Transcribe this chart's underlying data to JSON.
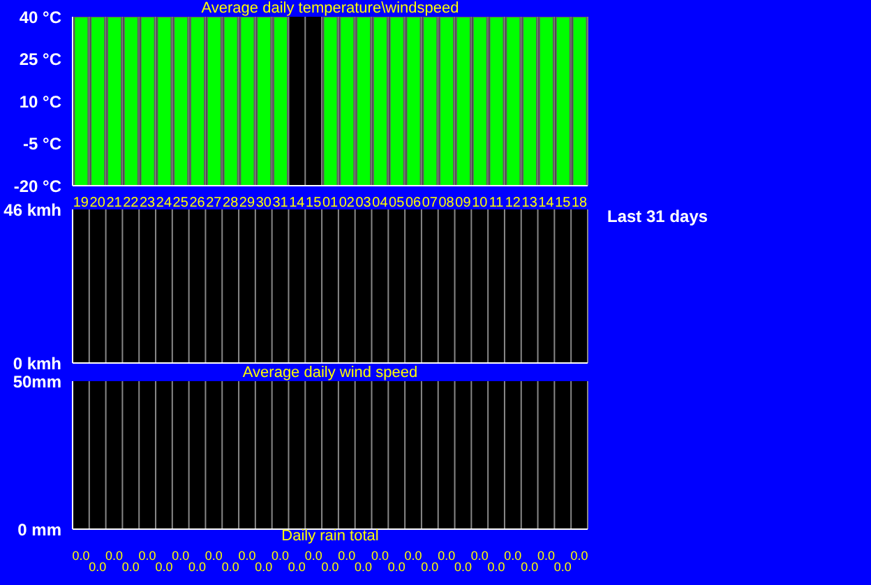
{
  "chart_data": [
    {
      "type": "bar",
      "title": "Average daily temperature\\windspeed",
      "categories": [
        "19",
        "20",
        "21",
        "22",
        "23",
        "24",
        "25",
        "26",
        "27",
        "28",
        "29",
        "30",
        "31",
        "14",
        "15",
        "01",
        "02",
        "03",
        "04",
        "05",
        "06",
        "07",
        "08",
        "09",
        "10",
        "11",
        "12",
        "13",
        "14",
        "15",
        "18"
      ],
      "values": [
        60,
        60,
        60,
        60,
        60,
        60,
        60,
        60,
        60,
        60,
        60,
        60,
        60,
        null,
        null,
        60,
        60,
        60,
        60,
        60,
        60,
        60,
        60,
        60,
        60,
        60,
        60,
        60,
        60,
        60,
        60
      ],
      "color": "#00ff00",
      "base": [
        -20,
        -20,
        -20,
        -20,
        -20,
        -20,
        -20,
        -20,
        -20,
        -20,
        -20,
        -20,
        -20,
        null,
        null,
        -20,
        -20,
        -20,
        -20,
        -20,
        -20,
        -20,
        -20,
        -20,
        -20,
        -20,
        -20,
        -20,
        -20,
        -20,
        -20
      ],
      "ylim": [
        -20,
        40
      ],
      "yticks": [
        {
          "value": -20,
          "label": "-20 °C"
        },
        {
          "value": -5,
          "label": "-5 °C"
        },
        {
          "value": 10,
          "label": "10 °C"
        },
        {
          "value": 25,
          "label": "25 °C"
        },
        {
          "value": 40,
          "label": "40 °C"
        }
      ]
    },
    {
      "type": "bar",
      "xlabel": "Average daily wind speed",
      "annotations": [
        "Last 31 days"
      ],
      "tick_labels": "y",
      "categories": [
        "19",
        "20",
        "21",
        "22",
        "23",
        "24",
        "25",
        "26",
        "27",
        "28",
        "29",
        "30",
        "31",
        "14",
        "15",
        "01",
        "02",
        "03",
        "04",
        "05",
        "06",
        "07",
        "08",
        "09",
        "10",
        "11",
        "12",
        "13",
        "14",
        "15",
        "18"
      ],
      "values": [
        0,
        0,
        0,
        0,
        0,
        0,
        0,
        0,
        0,
        0,
        0,
        0,
        0,
        0,
        0,
        0,
        0,
        0,
        0,
        0,
        0,
        0,
        0,
        0,
        0,
        0,
        0,
        0,
        0,
        0,
        0
      ],
      "color": "#00ff00",
      "ylim": [
        0,
        46
      ],
      "yticks": [
        {
          "value": 0,
          "label": "0 kmh"
        },
        {
          "value": 46,
          "label": "46 kmh"
        }
      ]
    },
    {
      "type": "bar",
      "xlabel": "Daily rain total",
      "tick_labels": "y",
      "data_labels": true,
      "categories": [
        "19",
        "20",
        "21",
        "22",
        "23",
        "24",
        "25",
        "26",
        "27",
        "28",
        "29",
        "30",
        "31",
        "14",
        "15",
        "01",
        "02",
        "03",
        "04",
        "05",
        "06",
        "07",
        "08",
        "09",
        "10",
        "11",
        "12",
        "13",
        "14",
        "15",
        "18"
      ],
      "values": [
        0,
        0,
        0,
        0,
        0,
        0,
        0,
        0,
        0,
        0,
        0,
        0,
        0,
        0,
        0,
        0,
        0,
        0,
        0,
        0,
        0,
        0,
        0,
        0,
        0,
        0,
        0,
        0,
        0,
        0,
        0
      ],
      "color": "#00ff00",
      "value_labels": [
        "0.0",
        "0.0",
        "0.0",
        "0.0",
        "0.0",
        "0.0",
        "0.0",
        "0.0",
        "0.0",
        "0.0",
        "0.0",
        "0.0",
        "0.0",
        "0.0",
        "0.0",
        "0.0",
        "0.0",
        "0.0",
        "0.0",
        "0.0",
        "0.0",
        "0.0",
        "0.0",
        "0.0",
        "0.0",
        "0.0",
        "0.0",
        "0.0",
        "0.0",
        "0.0",
        "0.0"
      ],
      "ylim": [
        0,
        50
      ],
      "yticks": [
        {
          "value": 0,
          "label": "0 mm"
        },
        {
          "value": 50,
          "label": "50mm"
        }
      ]
    }
  ]
}
